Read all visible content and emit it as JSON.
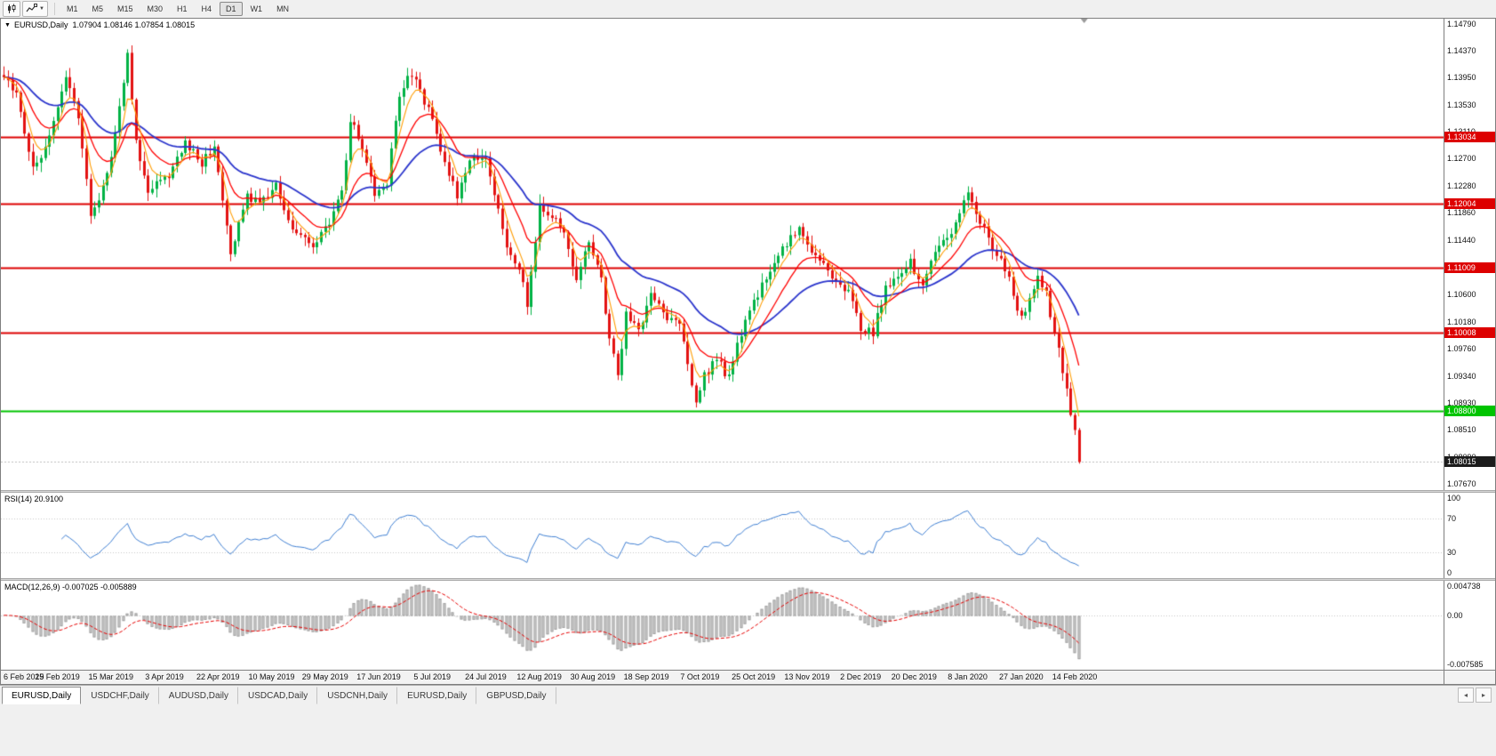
{
  "toolbar": {
    "timeframes": [
      "M1",
      "M5",
      "M15",
      "M30",
      "H1",
      "H4",
      "D1",
      "W1",
      "MN"
    ],
    "active_timeframe": "D1"
  },
  "chart": {
    "title": "EURUSD,Daily",
    "ohlc_text": "1.07904 1.08146 1.07854 1.08015",
    "price_axis": {
      "labels": [
        "1.14790",
        "1.14370",
        "1.13950",
        "1.13530",
        "1.13110",
        "1.12700",
        "1.12280",
        "1.11860",
        "1.11440",
        "1.11020",
        "1.10600",
        "1.10180",
        "1.09760",
        "1.09340",
        "1.08930",
        "1.08510",
        "1.08090",
        "1.07670"
      ]
    },
    "hlines": [
      {
        "value": 1.13034,
        "label": "1.13034",
        "color": "#dd0000",
        "width": 2
      },
      {
        "value": 1.12004,
        "label": "1.12004",
        "color": "#dd0000",
        "width": 2
      },
      {
        "value": 1.11009,
        "label": "1.11009",
        "color": "#dd0000",
        "width": 2
      },
      {
        "value": 1.10008,
        "label": "1.10008",
        "color": "#dd0000",
        "width": 2
      },
      {
        "value": 1.088,
        "label": "1.08800",
        "color": "#00c400",
        "width": 2
      }
    ],
    "current_price": {
      "value": 1.08015,
      "label": "1.08015",
      "chip_color": "#1c1c1c"
    },
    "colors": {
      "up": "#00b245",
      "down": "#e31212",
      "ma_fast": "#ff9c00",
      "ma_mid": "#ff0000",
      "ma_slow": "#2b35cc",
      "rsi": "#3f7fd2",
      "macd_hist_fill": "#d6d6d6",
      "macd_hist_stroke": "#a0a0a0",
      "signal": "#e60000"
    }
  },
  "rsi": {
    "label": "RSI(14) 20.9100",
    "levels": [
      "100",
      "70",
      "30",
      "0"
    ],
    "current": 20.91
  },
  "macd": {
    "label": "MACD(12,26,9) -0.007025 -0.005889",
    "axis": [
      "0.004738",
      "0.00",
      "-0.007585"
    ]
  },
  "date_axis": [
    "6 Feb 2019",
    "25 Feb 2019",
    "15 Mar 2019",
    "3 Apr 2019",
    "22 Apr 2019",
    "10 May 2019",
    "29 May 2019",
    "17 Jun 2019",
    "5 Jul 2019",
    "24 Jul 2019",
    "12 Aug 2019",
    "30 Aug 2019",
    "18 Sep 2019",
    "7 Oct 2019",
    "25 Oct 2019",
    "13 Nov 2019",
    "2 Dec 2019",
    "20 Dec 2019",
    "8 Jan 2020",
    "27 Jan 2020",
    "14 Feb 2020"
  ],
  "tabs": [
    {
      "label": "EURUSD,Daily",
      "active": true
    },
    {
      "label": "USDCHF,Daily",
      "active": false
    },
    {
      "label": "AUDUSD,Daily",
      "active": false
    },
    {
      "label": "USDCAD,Daily",
      "active": false
    },
    {
      "label": "USDCNH,Daily",
      "active": false
    },
    {
      "label": "EURUSD,Daily",
      "active": false
    },
    {
      "label": "GBPUSD,Daily",
      "active": false
    }
  ],
  "tab_scroll": {
    "left": "◂",
    "right": "▸"
  },
  "chart_data": {
    "type": "candlestick",
    "symbol": "EURUSD",
    "timeframe": "Daily",
    "x_start": "6 Feb 2019",
    "x_end": "14 Feb 2020",
    "current_ohlc": {
      "open": 1.07904,
      "high": 1.08146,
      "low": 1.07854,
      "close": 1.08015
    },
    "horizontal_levels": [
      1.13034,
      1.12004,
      1.11009,
      1.10008,
      1.088
    ],
    "indicators": [
      {
        "name": "RSI",
        "period": 14,
        "current": 20.91,
        "scale": [
          0,
          100
        ],
        "marked_levels": [
          70,
          30
        ]
      },
      {
        "name": "MACD",
        "params": [
          12,
          26,
          9
        ],
        "current_main": -0.007025,
        "current_signal": -0.005889,
        "scale_labels": [
          0.004738,
          0.0,
          -0.007585
        ]
      },
      {
        "name": "moving-averages",
        "colors": [
          "#ff9c00",
          "#ff0000",
          "#2b35cc"
        ]
      }
    ],
    "ylim_main": [
      1.0758,
      1.1486
    ],
    "ylim_macd": [
      -0.0082,
      0.0052
    ],
    "n_candles": 262,
    "tick_every": 13,
    "data_width_frac": 0.748,
    "last_close": 1.08015,
    "anchors": [
      [
        0,
        1.14
      ],
      [
        3,
        1.137
      ],
      [
        7,
        1.1255
      ],
      [
        11,
        1.13
      ],
      [
        15,
        1.1395
      ],
      [
        18,
        1.133
      ],
      [
        21,
        1.1185
      ],
      [
        25,
        1.124
      ],
      [
        29,
        1.138
      ],
      [
        30,
        1.1435
      ],
      [
        32,
        1.13
      ],
      [
        35,
        1.122
      ],
      [
        39,
        1.1235
      ],
      [
        44,
        1.1295
      ],
      [
        48,
        1.126
      ],
      [
        51,
        1.129
      ],
      [
        55,
        1.1118
      ],
      [
        59,
        1.1215
      ],
      [
        62,
        1.12
      ],
      [
        66,
        1.123
      ],
      [
        70,
        1.116
      ],
      [
        75,
        1.113
      ],
      [
        79,
        1.117
      ],
      [
        82,
        1.122
      ],
      [
        84,
        1.133
      ],
      [
        87,
        1.129
      ],
      [
        90,
        1.121
      ],
      [
        93,
        1.1235
      ],
      [
        96,
        1.137
      ],
      [
        99,
        1.14
      ],
      [
        101,
        1.1375
      ],
      [
        104,
        1.133
      ],
      [
        106,
        1.1285
      ],
      [
        110,
        1.121
      ],
      [
        113,
        1.1268
      ],
      [
        117,
        1.1275
      ],
      [
        122,
        1.114
      ],
      [
        126,
        1.1075
      ],
      [
        127,
        1.104
      ],
      [
        130,
        1.12
      ],
      [
        135,
        1.117
      ],
      [
        139,
        1.109
      ],
      [
        142,
        1.1145
      ],
      [
        145,
        1.108
      ],
      [
        147,
        1.0995
      ],
      [
        149,
        1.093
      ],
      [
        151,
        1.103
      ],
      [
        154,
        1.1
      ],
      [
        157,
        1.107
      ],
      [
        160,
        1.103
      ],
      [
        164,
        1.1015
      ],
      [
        166,
        1.095
      ],
      [
        168,
        1.0895
      ],
      [
        170,
        1.0935
      ],
      [
        173,
        1.096
      ],
      [
        176,
        1.093
      ],
      [
        178,
        1.0985
      ],
      [
        181,
        1.1035
      ],
      [
        184,
        1.1075
      ],
      [
        187,
        1.111
      ],
      [
        190,
        1.114
      ],
      [
        193,
        1.1165
      ],
      [
        196,
        1.1125
      ],
      [
        199,
        1.111
      ],
      [
        202,
        1.1075
      ],
      [
        205,
        1.107
      ],
      [
        208,
        1.101
      ],
      [
        211,
        1.1
      ],
      [
        214,
        1.1075
      ],
      [
        217,
        1.1085
      ],
      [
        220,
        1.111
      ],
      [
        223,
        1.1075
      ],
      [
        226,
        1.112
      ],
      [
        229,
        1.1145
      ],
      [
        232,
        1.1185
      ],
      [
        234,
        1.1225
      ],
      [
        236,
        1.119
      ],
      [
        238,
        1.116
      ],
      [
        240,
        1.1135
      ],
      [
        242,
        1.1115
      ],
      [
        244,
        1.1085
      ],
      [
        246,
        1.1035
      ],
      [
        247,
        1.102
      ],
      [
        249,
        1.105
      ],
      [
        251,
        1.109
      ],
      [
        253,
        1.106
      ],
      [
        255,
        1.1
      ],
      [
        256,
        1.097
      ],
      [
        257,
        1.094
      ],
      [
        258,
        1.0915
      ],
      [
        259,
        1.088
      ],
      [
        260,
        1.0845
      ],
      [
        261,
        1.0802
      ]
    ]
  }
}
